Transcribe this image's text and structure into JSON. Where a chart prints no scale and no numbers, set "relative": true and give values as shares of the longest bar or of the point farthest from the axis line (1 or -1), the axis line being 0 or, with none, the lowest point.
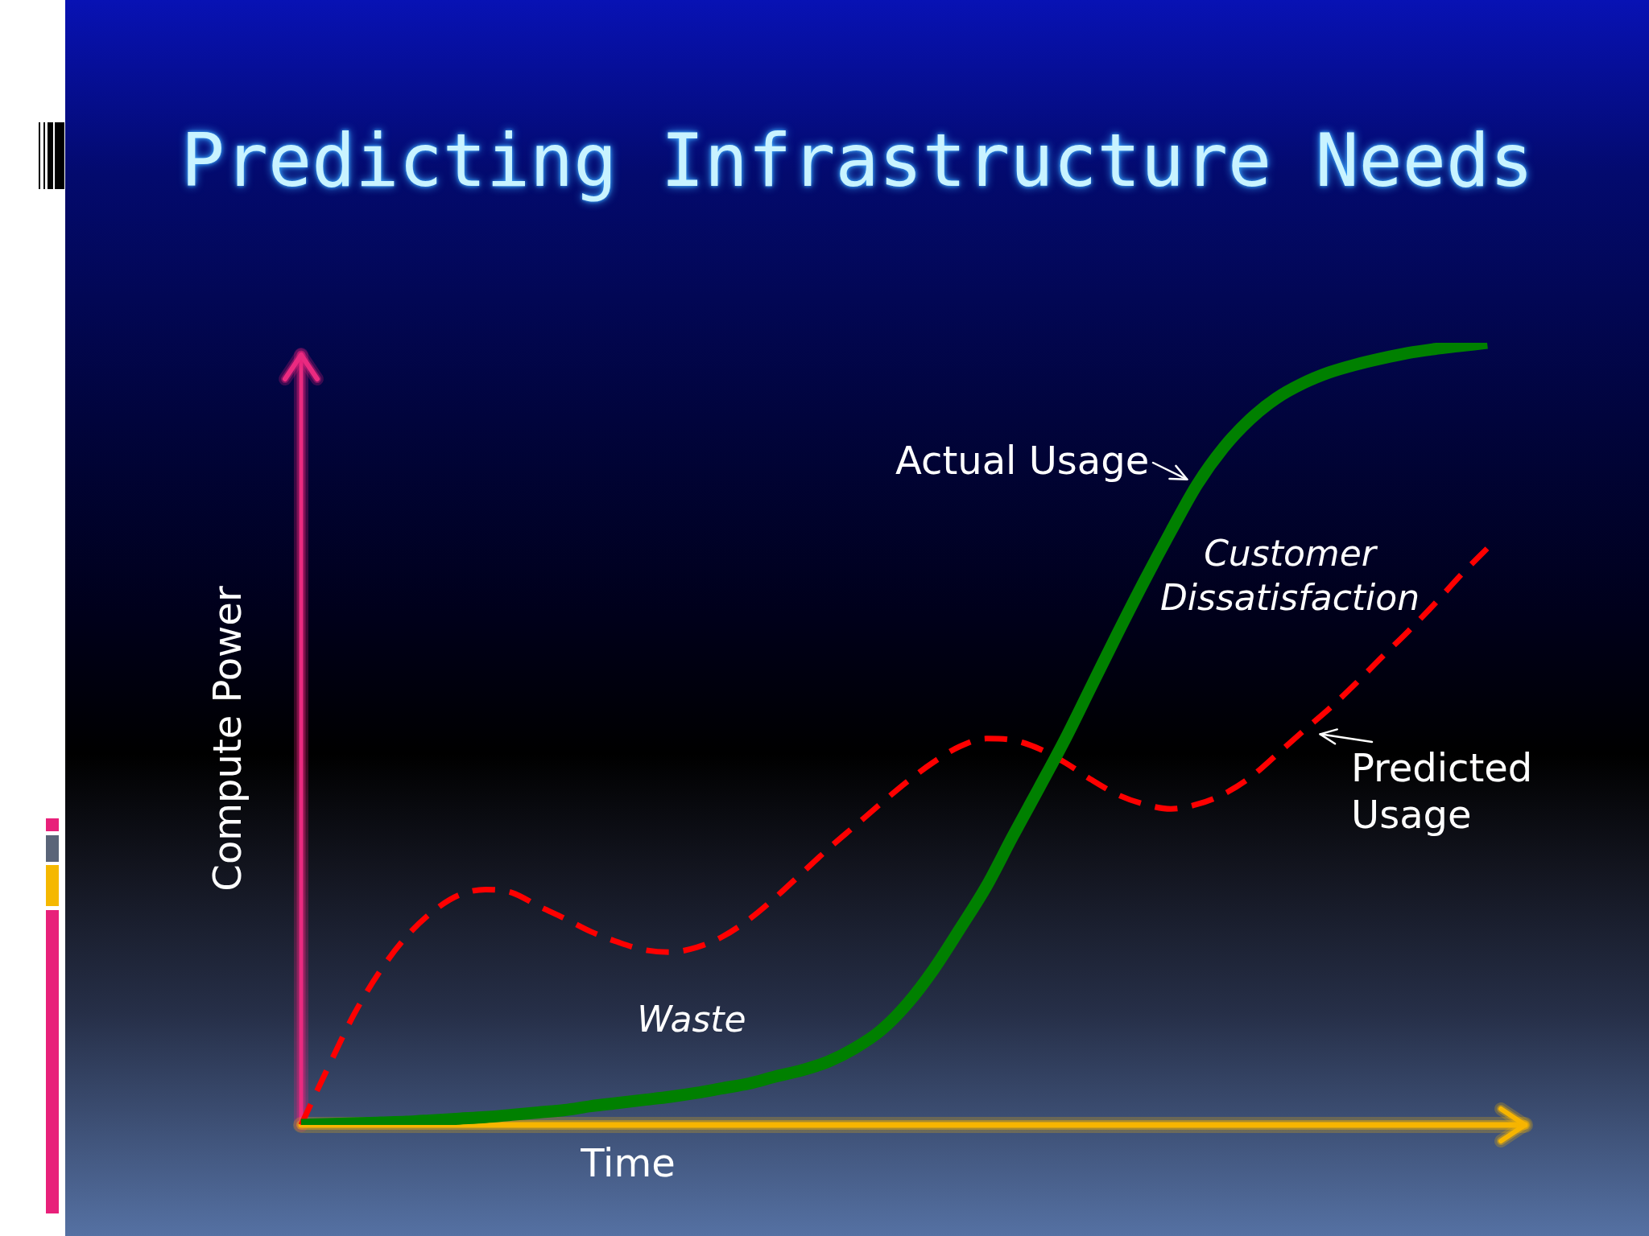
{
  "chart_data": {
    "type": "line",
    "title": "Predicting Infrastructure Needs",
    "xlabel": "Time",
    "ylabel": "Compute Power",
    "relative": true,
    "marker": "none",
    "categories": [
      null,
      null,
      null,
      null,
      null,
      null,
      null,
      null,
      null,
      null,
      null,
      null,
      null,
      null,
      null,
      null,
      null,
      null,
      null,
      null,
      null,
      null,
      null,
      null,
      null,
      null,
      null,
      null,
      null,
      null,
      null,
      null,
      null,
      null,
      null,
      null,
      null,
      null,
      null,
      null,
      null,
      null,
      null,
      null,
      null,
      null
    ],
    "series": [
      {
        "name": "Actual Usage",
        "color": "#008000",
        "line_style": "solid",
        "values": [
          0,
          0.001,
          0.002,
          0.003,
          0.004,
          0.006,
          0.008,
          0.01,
          0.013,
          0.016,
          0.019,
          0.024,
          0.028,
          0.032,
          0.036,
          0.041,
          0.047,
          0.053,
          0.062,
          0.07,
          0.081,
          0.098,
          0.121,
          0.155,
          0.199,
          0.251,
          0.305,
          0.369,
          0.431,
          0.494,
          0.562,
          0.63,
          0.696,
          0.759,
          0.819,
          0.866,
          0.902,
          0.929,
          0.948,
          0.962,
          0.972,
          0.98,
          0.987,
          0.992,
          0.996,
          1
        ]
      },
      {
        "name": "Predicted Usage",
        "color": "#ff0000",
        "line_style": "dashed",
        "values": [
          0,
          0.072,
          0.141,
          0.197,
          0.241,
          0.273,
          0.294,
          0.301,
          0.297,
          0.28,
          0.264,
          0.247,
          0.234,
          0.224,
          0.221,
          0.227,
          0.241,
          0.263,
          0.291,
          0.322,
          0.353,
          0.382,
          0.411,
          0.439,
          0.464,
          0.484,
          0.494,
          0.492,
          0.481,
          0.463,
          0.441,
          0.422,
          0.41,
          0.404,
          0.41,
          0.423,
          0.444,
          0.473,
          0.503,
          0.532,
          0.564,
          0.598,
          0.631,
          0.666,
          0.703,
          0.737
        ]
      }
    ],
    "annotations": [
      "Waste",
      "Customer Dissatisfaction"
    ]
  }
}
